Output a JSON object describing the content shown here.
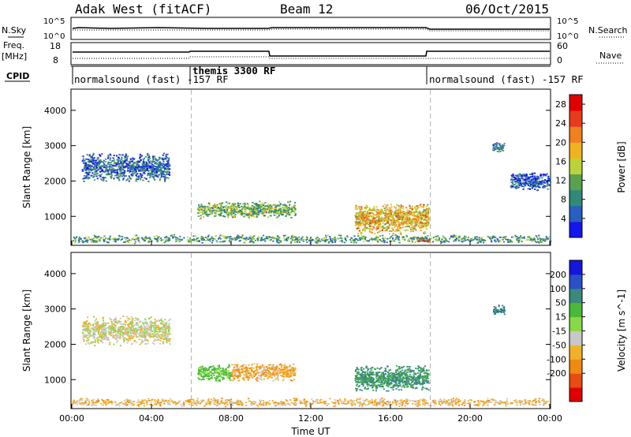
{
  "header": {
    "station": "Adak West (fitACF)",
    "beam": "Beam 12",
    "date": "06/Oct/2015"
  },
  "colors": {
    "noise_line": "#000000",
    "guide_line": "#b4b4b4",
    "panel_border": "#000000",
    "power_scale": [
      "#1515ee",
      "#2a5ec0",
      "#2f8a7a",
      "#5aa14f",
      "#b8d43a",
      "#f0b21e",
      "#f08020",
      "#e83b1e",
      "#e00000"
    ],
    "velocity_scale": [
      "#e00000",
      "#e84c10",
      "#f08a12",
      "#f2b02a",
      "#c8c8c8",
      "#88d848",
      "#4ab93a",
      "#3a8a7c",
      "#2a50c8",
      "#1616dd"
    ]
  },
  "top_panels": {
    "nsky_label": "N.Sky",
    "nsky_ticks": [
      "10^5",
      "10^0"
    ],
    "nsearch_label": "N.Search",
    "freq_label_line1": "Freq.",
    "freq_label_line2": "[MHz]",
    "freq_ticks": [
      "18",
      "8"
    ],
    "nave_label": "Nave",
    "nave_ticks": [
      "60",
      "0"
    ],
    "cpid_label": "CPID",
    "cpid_segments": [
      {
        "label": "normalsound (fast) -157 RF",
        "start_h": 0,
        "end_h": 6
      },
      {
        "label": "themis 3300 RF",
        "start_h": 6,
        "end_h": 18
      },
      {
        "label": "normalsound (fast) -157 RF",
        "start_h": 18,
        "end_h": 24
      }
    ]
  },
  "chart_data": [
    {
      "type": "heatmap",
      "title": "",
      "xlabel": "",
      "ylabel": "Slant Range [km]",
      "xlim_h": [
        0,
        24
      ],
      "ylim_km": [
        180,
        4600
      ],
      "y_ticks": [
        "1000",
        "2000",
        "3000",
        "4000"
      ],
      "colorbar": {
        "label": "Power [dB]",
        "ticks": [
          "4",
          "8",
          "12",
          "16",
          "20",
          "24",
          "28"
        ],
        "range": [
          0,
          30
        ]
      },
      "features": [
        {
          "t_start_h": 0.5,
          "t_end_h": 4.9,
          "range_min_km": 1800,
          "range_max_km": 3000,
          "level": 6
        },
        {
          "t_start_h": 6.3,
          "t_end_h": 11.2,
          "range_min_km": 850,
          "range_max_km": 1550,
          "level": 12
        },
        {
          "t_start_h": 14.2,
          "t_end_h": 17.9,
          "range_min_km": 300,
          "range_max_km": 1600,
          "level": 18
        },
        {
          "t_start_h": 17.3,
          "t_end_h": 17.9,
          "range_min_km": 250,
          "range_max_km": 450,
          "level": 28
        },
        {
          "t_start_h": 21.1,
          "t_end_h": 21.7,
          "range_min_km": 2750,
          "range_max_km": 3200,
          "level": 8
        },
        {
          "t_start_h": 22.0,
          "t_end_h": 24.0,
          "range_min_km": 1600,
          "range_max_km": 2400,
          "level": 5
        },
        {
          "t_start_h": 0.0,
          "t_end_h": 24.0,
          "range_min_km": 200,
          "range_max_km": 550,
          "level": 10
        }
      ]
    },
    {
      "type": "heatmap",
      "title": "",
      "xlabel": "Time UT",
      "ylabel": "Slant Range [km]",
      "xlim_h": [
        0,
        24
      ],
      "ylim_km": [
        180,
        4600
      ],
      "x_ticks": [
        "00:00",
        "04:00",
        "08:00",
        "12:00",
        "16:00",
        "20:00",
        "00:00"
      ],
      "y_ticks": [
        "1000",
        "2000",
        "3000",
        "4000"
      ],
      "colorbar": {
        "label": "Velocity [m s^-1]",
        "ticks": [
          "200",
          "100",
          "50",
          "15",
          "-15",
          "-50",
          "-100",
          "-200"
        ],
        "range": [
          -250,
          250
        ]
      },
      "features": [
        {
          "t_start_h": 0.5,
          "t_end_h": 4.9,
          "range_min_km": 1800,
          "range_max_km": 3000,
          "velocity": 0
        },
        {
          "t_start_h": 6.3,
          "t_end_h": 8.0,
          "range_min_km": 850,
          "range_max_km": 1550,
          "velocity": 60
        },
        {
          "t_start_h": 8.0,
          "t_end_h": 11.2,
          "range_min_km": 850,
          "range_max_km": 1600,
          "velocity": -40
        },
        {
          "t_start_h": 14.2,
          "t_end_h": 17.9,
          "range_min_km": 500,
          "range_max_km": 1600,
          "velocity": 120
        },
        {
          "t_start_h": 21.1,
          "t_end_h": 21.7,
          "range_min_km": 2750,
          "range_max_km": 3200,
          "velocity": 180
        },
        {
          "t_start_h": 0.0,
          "t_end_h": 24.0,
          "range_min_km": 200,
          "range_max_km": 550,
          "velocity": -30
        }
      ]
    }
  ]
}
